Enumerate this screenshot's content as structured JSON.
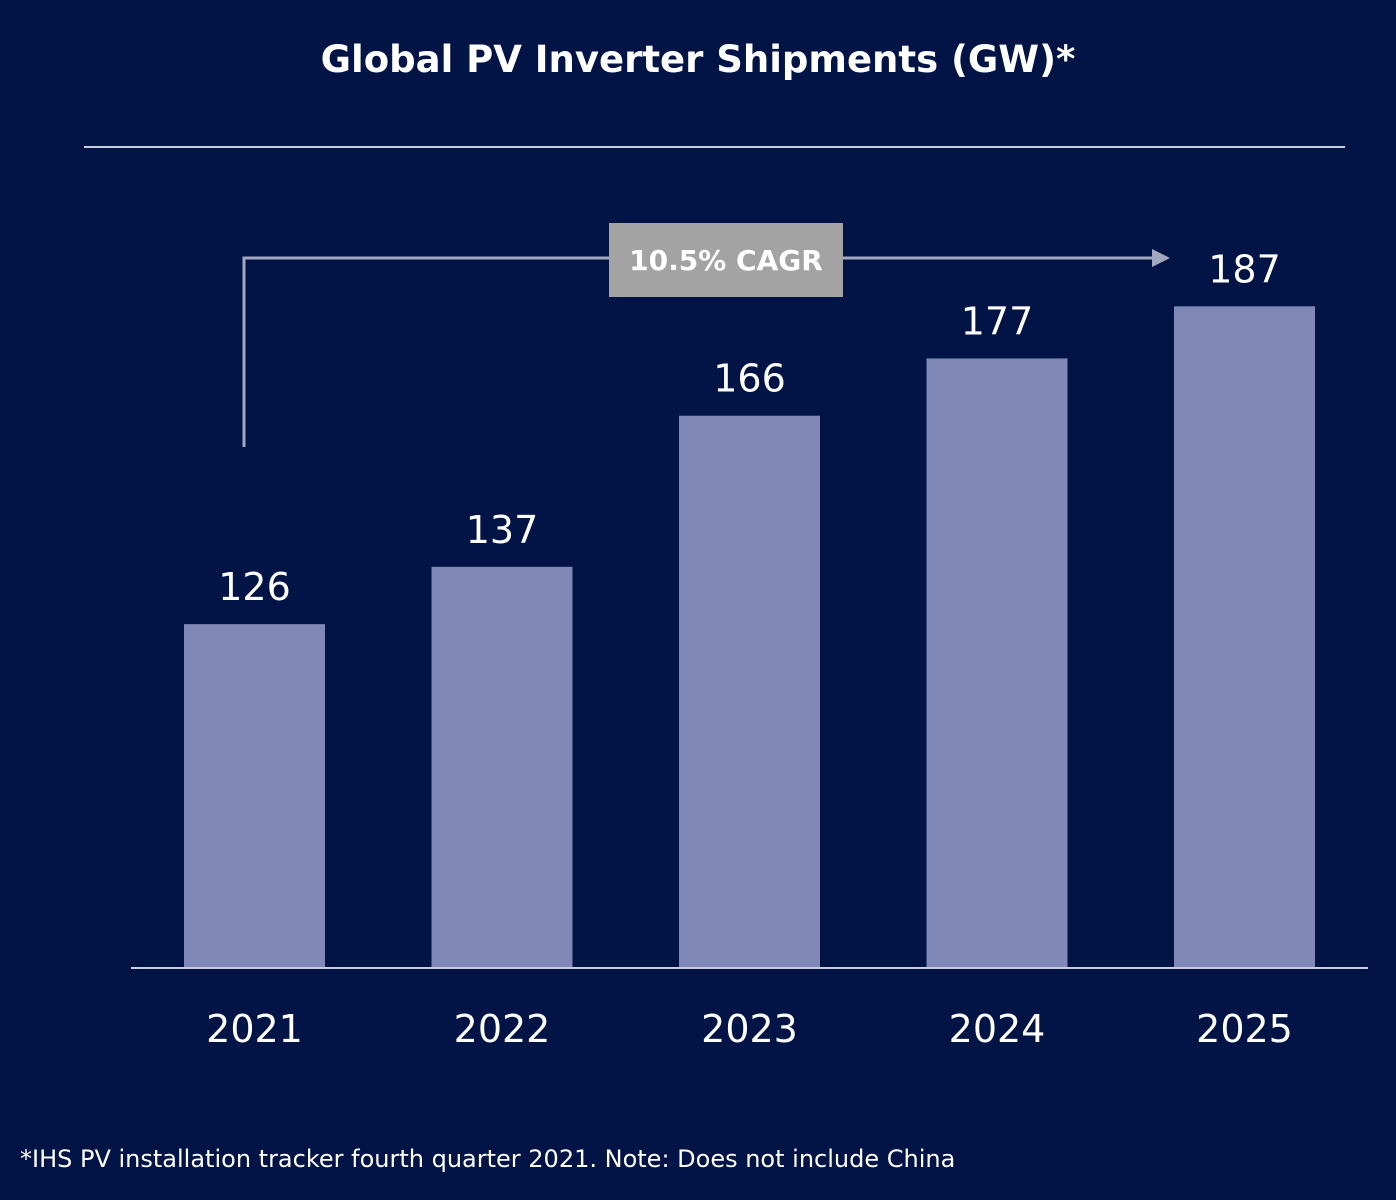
{
  "chart_data": {
    "type": "bar",
    "title": "Global PV Inverter Shipments (GW)*",
    "categories": [
      "2021",
      "2022",
      "2023",
      "2024",
      "2025"
    ],
    "values": [
      126,
      137,
      166,
      177,
      187
    ],
    "xlabel": "",
    "ylabel": "",
    "ylim": [
      60,
      190
    ],
    "grid": false,
    "annotation": "10.5% CAGR",
    "footnote": "*IHS PV installation tracker fourth quarter 2021. Note: Does not include China",
    "colors": {
      "background": "#021446",
      "bar": "#7f88b7",
      "annotation_box": "#a3a3a3",
      "arrow": "#a3a7bf"
    }
  }
}
